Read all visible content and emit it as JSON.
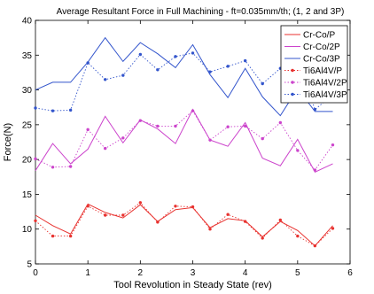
{
  "chart_data": {
    "type": "line",
    "title": "Average Resultant Force in Full Machining - ft=0.035mm/th; (1, 2 and 3P)",
    "xlabel": "Tool Revolution in Steady State (rev)",
    "ylabel": "Force(N)",
    "xlim": [
      0,
      6
    ],
    "ylim": [
      5,
      40
    ],
    "xticks": [
      0,
      1,
      2,
      3,
      4,
      5,
      6
    ],
    "yticks": [
      5,
      10,
      15,
      20,
      25,
      30,
      35,
      40
    ],
    "grid": false,
    "legend_position": "top-right",
    "series": [
      {
        "name": "Cr-Co/P",
        "color": "#e8322f",
        "linestyle": "solid",
        "marker": "none",
        "x": [
          0,
          0.33,
          0.67,
          1,
          1.33,
          1.67,
          2,
          2.33,
          2.67,
          3,
          3.33,
          3.67,
          4,
          4.33,
          4.67,
          5,
          5.33,
          5.67
        ],
        "y": [
          12,
          10.5,
          9.3,
          13.6,
          12.4,
          11.6,
          13.5,
          11.1,
          12.8,
          13.1,
          10.2,
          11.5,
          11.2,
          8.9,
          11.1,
          9.8,
          7.6,
          10.5
        ]
      },
      {
        "name": "Cr-Co/2P",
        "color": "#cc44cc",
        "linestyle": "solid",
        "marker": "none",
        "x": [
          0,
          0.33,
          0.67,
          1,
          1.33,
          1.67,
          2,
          2.33,
          2.67,
          3,
          3.33,
          3.67,
          4,
          4.33,
          4.67,
          5,
          5.33,
          5.67
        ],
        "y": [
          18.4,
          22.3,
          19.4,
          21.5,
          26.2,
          22.4,
          25.7,
          24.4,
          22.3,
          27.2,
          22.8,
          21.9,
          25.3,
          20.2,
          19.1,
          22.9,
          18.2,
          19.4
        ]
      },
      {
        "name": "Cr-Co/3P",
        "color": "#3355cc",
        "linestyle": "solid",
        "marker": "none",
        "x": [
          0,
          0.33,
          0.67,
          1,
          1.33,
          1.67,
          2,
          2.33,
          2.67,
          3,
          3.33,
          3.67,
          4,
          4.33,
          4.67,
          5,
          5.33,
          5.67
        ],
        "y": [
          30,
          31.1,
          31.1,
          34,
          37.5,
          34.1,
          36.8,
          35.2,
          33.2,
          36.5,
          32.2,
          28.9,
          33.1,
          29,
          26.3,
          30.2,
          26.9,
          26.9
        ]
      },
      {
        "name": "Ti6Al4V/P",
        "color": "#e8322f",
        "linestyle": "dotted",
        "marker": "dot",
        "x": [
          0,
          0.33,
          0.67,
          1,
          1.33,
          1.67,
          2,
          2.33,
          2.67,
          3,
          3.33,
          3.67,
          4,
          4.33,
          4.67,
          5,
          5.33,
          5.67
        ],
        "y": [
          11.2,
          9,
          9,
          13.3,
          12,
          12,
          13.8,
          11,
          13.3,
          13.2,
          10,
          12.1,
          11.1,
          8.7,
          11.3,
          9,
          7.6,
          10.1
        ]
      },
      {
        "name": "Ti6Al4V/2P",
        "color": "#cc44cc",
        "linestyle": "dotted",
        "marker": "dot",
        "x": [
          0,
          0.33,
          0.67,
          1,
          1.33,
          1.67,
          2,
          2.33,
          2.67,
          3,
          3.33,
          3.67,
          4,
          4.33,
          4.67,
          5,
          5.33,
          5.67
        ],
        "y": [
          20.1,
          18.9,
          19,
          24.3,
          21.6,
          23.1,
          25.6,
          24.8,
          24.8,
          27,
          22.8,
          24.7,
          24.8,
          23,
          25.3,
          21.3,
          18.5,
          22.1
        ]
      },
      {
        "name": "Ti6Al4V/3P",
        "color": "#3355cc",
        "linestyle": "dotted",
        "marker": "dot",
        "x": [
          0,
          0.33,
          0.67,
          1,
          1.33,
          1.67,
          2,
          2.33,
          2.67,
          3,
          3.33,
          3.67,
          4,
          4.33,
          4.67,
          5,
          5.33,
          5.67
        ],
        "y": [
          27.4,
          27,
          27.1,
          33.9,
          31.5,
          32.1,
          35.1,
          32.9,
          34.8,
          35.3,
          32.6,
          33.4,
          34.2,
          30.9,
          33.1,
          34.4,
          27.2,
          29.3
        ]
      }
    ]
  }
}
